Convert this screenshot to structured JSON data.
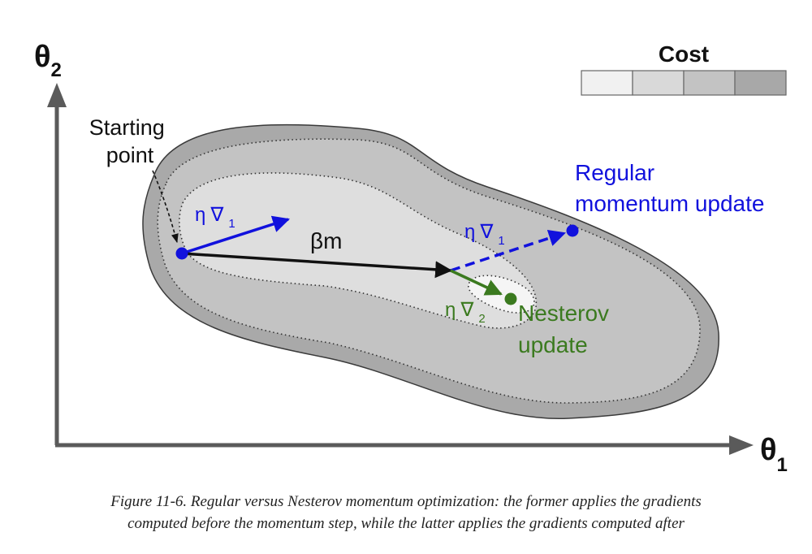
{
  "colors": {
    "axis": "#5a5a5a",
    "outer_region": "#a9a9a9",
    "middle_region": "#c3c3c3",
    "inner_region": "#dedede",
    "center_region": "#f5f5f5",
    "regular": "#1111dd",
    "nesterov": "#3b7a1f",
    "momentum": "#111111"
  },
  "axes": {
    "y_label": "θ",
    "y_sub": "2",
    "x_label": "θ",
    "x_sub": "1"
  },
  "legend": {
    "title": "Cost",
    "swatches": [
      "#f1f1f1",
      "#d9d9d9",
      "#c3c3c3",
      "#a8a8a8"
    ]
  },
  "labels": {
    "starting_line1": "Starting",
    "starting_line2": "point",
    "eta": "η",
    "nabla": "∇",
    "sub1": "1",
    "sub2": "2",
    "beta_m": "βm",
    "regular_line1": "Regular",
    "regular_line2": "momentum update",
    "nesterov_line1": "Nesterov",
    "nesterov_line2": "update"
  },
  "caption": {
    "line1": "Figure 11-6. Regular versus Nesterov momentum optimization: the former applies the gradients",
    "line2": "computed before the momentum step, while the latter applies the gradients computed after"
  }
}
